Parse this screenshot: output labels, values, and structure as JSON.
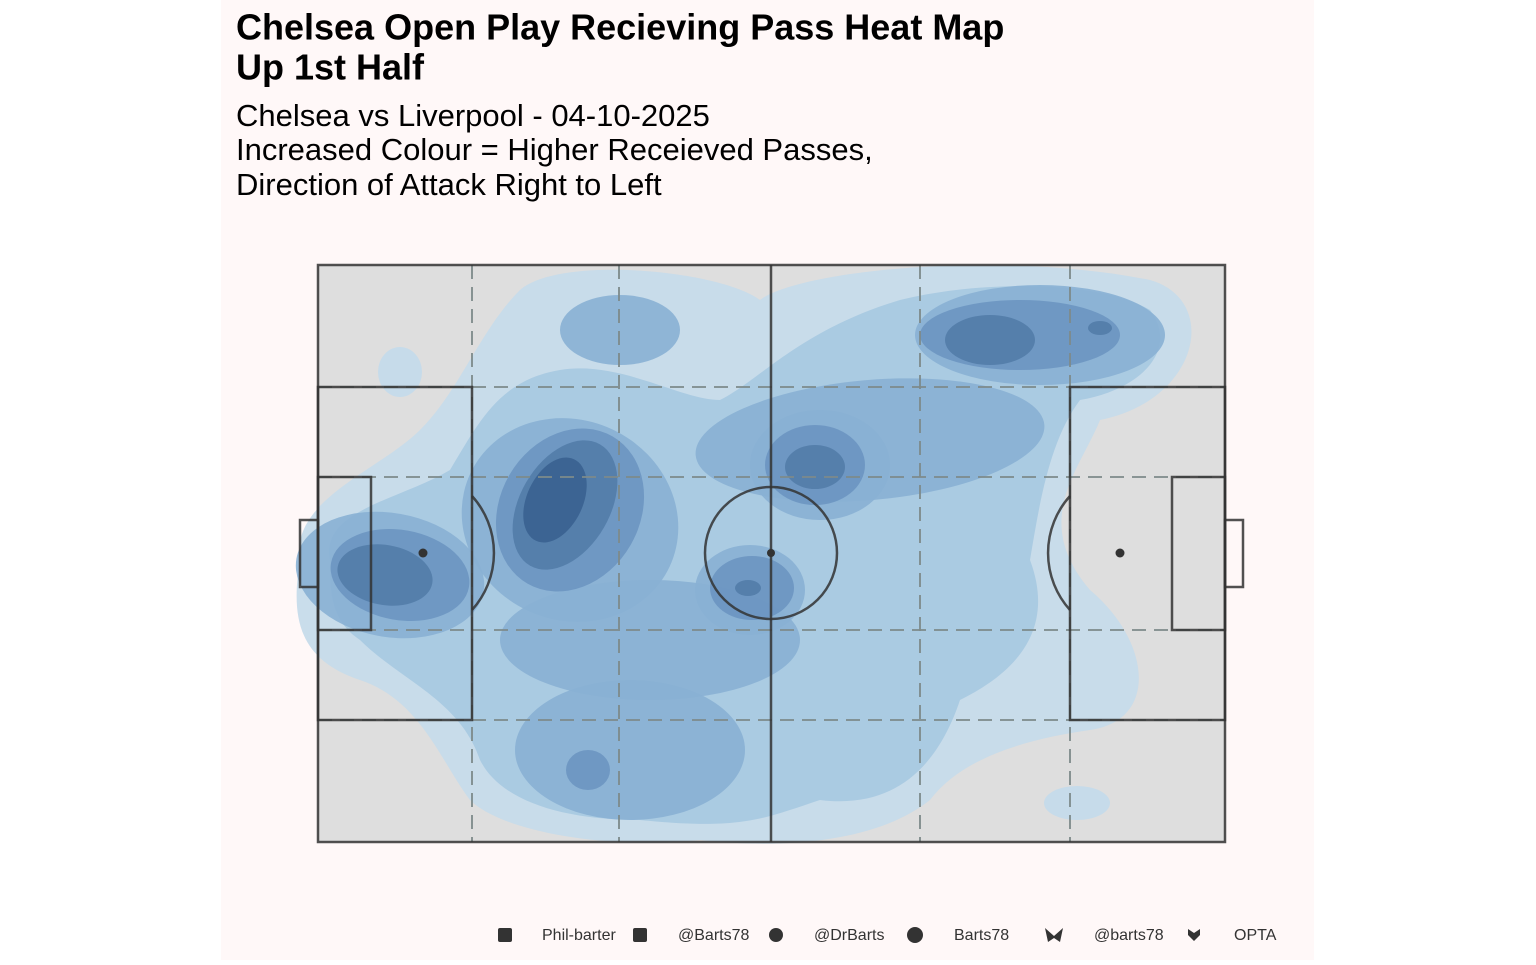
{
  "chart_data": {
    "type": "heatmap",
    "title": [
      "Chelsea Open Play Recieving Pass Heat Map",
      "Up 1st Half"
    ],
    "subtitle": [
      "Chelsea vs Liverpool - 04-10-2025",
      "Increased Colour = Higher Receieved Passes,",
      "Direction of Attack Right to Left"
    ],
    "caption": [
      "Phil-barter",
      "@Barts78",
      "@DrBarts",
      "Barts78",
      "@barts78",
      "OPTA"
    ],
    "colors": [
      "#c6dbea",
      "#a9c9e1",
      "#88b0d4",
      "#6c95c1",
      "#527ca9",
      "#3a6290"
    ]
  }
}
